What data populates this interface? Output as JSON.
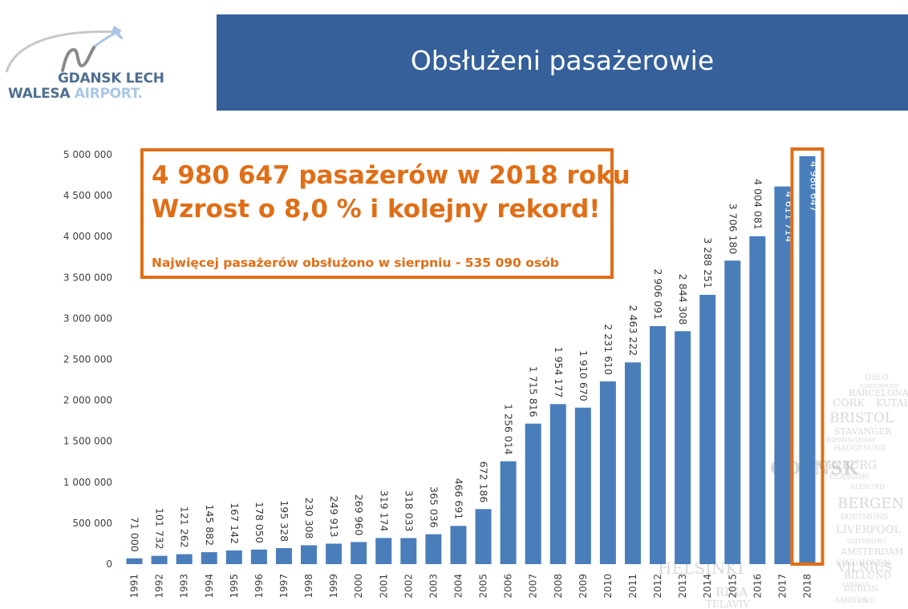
{
  "logo": {
    "line1_a": "GDANSK",
    "line1_b": "LECH",
    "line2_a": "WALESA",
    "line2_b": "AIRPORT.",
    "icon": "airplane-swoosh-icon"
  },
  "header": {
    "title": "Obsłużeni pasażerowie"
  },
  "callout": {
    "line1": "4 980 647 pasażerów w 2018 roku",
    "line2": "Wzrost o 8,0 % i kolejny rekord!",
    "note": "Najwięcej pasażerów obsłużono w sierpniu - 535 090 osób"
  },
  "colors": {
    "bar": "#4a7ebb",
    "header": "#35609a",
    "accent": "#e06e16"
  },
  "chart_data": {
    "type": "bar",
    "categories": [
      "1991",
      "1992",
      "1993",
      "1994",
      "1995",
      "1996",
      "1997",
      "1998",
      "1999",
      "2000",
      "2001",
      "2002",
      "2003",
      "2004",
      "2005",
      "2006",
      "2007",
      "2008",
      "2009",
      "2010",
      "2011",
      "2012",
      "2013",
      "2014",
      "2015",
      "2016",
      "2017",
      "2018"
    ],
    "values": [
      71000,
      101732,
      121262,
      145882,
      167142,
      178050,
      195328,
      230308,
      249913,
      269960,
      319174,
      318033,
      365036,
      466691,
      672186,
      1256014,
      1715816,
      1954177,
      1910670,
      2231610,
      2463222,
      2906091,
      2844308,
      3288251,
      3706180,
      4004081,
      4611714,
      4980647
    ],
    "value_labels": [
      "71 000",
      "101 732",
      "121 262",
      "145 882",
      "167 142",
      "178 050",
      "195 328",
      "230 308",
      "249 913",
      "269 960",
      "319 174",
      "318 033",
      "365 036",
      "466 691",
      "672 186",
      "1 256 014",
      "1 715 816",
      "1 954 177",
      "1 910 670",
      "2 231 610",
      "2 463 222",
      "2 906 091",
      "2 844 308",
      "3 288 251",
      "3 706 180",
      "4 004 081",
      "4 611 714",
      "4 980 647"
    ],
    "yticks": [
      "0",
      "500 000",
      "1 000 000",
      "1 500 000",
      "2 000 000",
      "2 500 000",
      "3 000 000",
      "3 500 000",
      "4 000 000",
      "4 500 000",
      "5 000 000"
    ],
    "ylim": [
      0,
      5000000
    ],
    "highlighted_category": "2018",
    "title": "",
    "xlabel": "",
    "ylabel": "",
    "grid": false,
    "legend": "none"
  },
  "background_cities": [
    "OSLO",
    "GARDERMOEN",
    "BARCELONA",
    "CORK",
    "KUTAISI",
    "BRISTOL",
    "STAVANGER",
    "BIRMINGHAM",
    "HAUGESUND",
    "EDINBURG",
    "GLASGOW",
    "GDANSK",
    "ALESUND",
    "BERGEN",
    "DORTMUND",
    "LIVERPOOL",
    "GOTEBORG",
    "AMSTERDAM",
    "EINDHOVEN",
    "HELSINKI",
    "BILLUND",
    "DUBLIN",
    "AARHUS",
    "RIGA",
    "OSLO",
    "TELAVIV",
    "LONDON",
    "VILNIUS"
  ]
}
